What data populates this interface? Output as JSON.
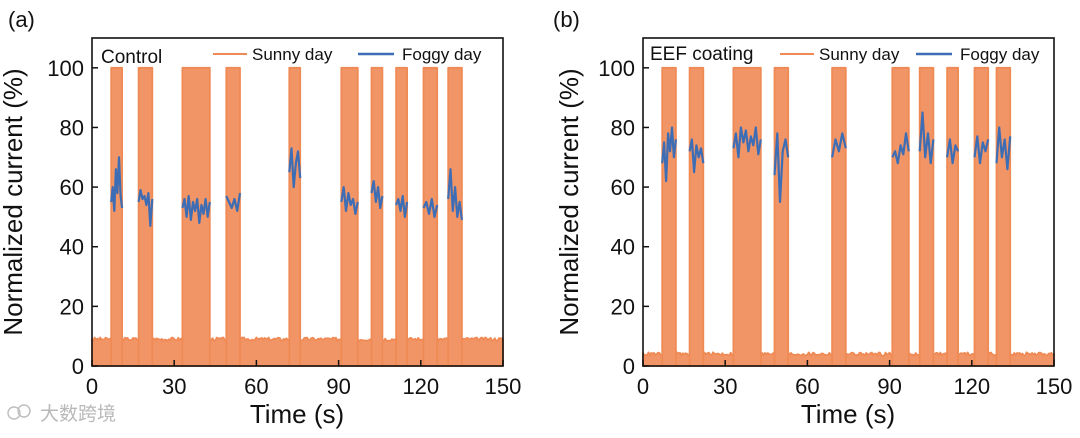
{
  "watermark": {
    "text": "大数跨境"
  },
  "chart_data": [
    {
      "panel": "(a)",
      "label": "Control",
      "type": "line",
      "xlabel": "Time (s)",
      "ylabel": "Normalized current (%)",
      "xlim": [
        0,
        150
      ],
      "ylim": [
        0,
        110
      ],
      "xticks": [
        0,
        30,
        60,
        90,
        120,
        150
      ],
      "yticks": [
        0,
        20,
        40,
        60,
        80,
        100
      ],
      "legend": {
        "placement": "top-right",
        "entries": [
          "Sunny day",
          "Foggy day"
        ]
      },
      "colors": {
        "sunny": "#f08a55",
        "foggy": "#3d6db5"
      },
      "sunny_baseline": 9,
      "sunny_segments": [
        [
          7,
          11
        ],
        [
          17,
          22
        ],
        [
          33,
          43
        ],
        [
          49,
          54
        ],
        [
          72,
          76
        ],
        [
          91,
          97
        ],
        [
          102,
          106
        ],
        [
          111,
          115
        ],
        [
          121,
          126
        ],
        [
          130,
          135
        ]
      ],
      "foggy_bursts": [
        {
          "start": 7,
          "end": 11,
          "values": [
            55,
            60,
            52,
            66,
            58,
            70,
            57,
            53
          ]
        },
        {
          "start": 17,
          "end": 22,
          "values": [
            55,
            59,
            56,
            57,
            54,
            58,
            47,
            56
          ]
        },
        {
          "start": 33,
          "end": 43,
          "values": [
            53,
            56,
            50,
            57,
            49,
            55,
            52,
            56,
            48,
            54,
            51,
            56,
            50,
            55
          ]
        },
        {
          "start": 49,
          "end": 54,
          "values": [
            57,
            55,
            53,
            56,
            52,
            58
          ]
        },
        {
          "start": 72,
          "end": 76,
          "values": [
            65,
            73,
            60,
            68,
            72,
            63
          ]
        },
        {
          "start": 91,
          "end": 97,
          "values": [
            55,
            60,
            52,
            58,
            54,
            56,
            51,
            55
          ]
        },
        {
          "start": 102,
          "end": 106,
          "values": [
            58,
            62,
            55,
            60,
            53,
            57
          ]
        },
        {
          "start": 111,
          "end": 115,
          "values": [
            54,
            56,
            52,
            57,
            50,
            55
          ]
        },
        {
          "start": 121,
          "end": 126,
          "values": [
            53,
            55,
            51,
            56,
            50,
            54
          ]
        },
        {
          "start": 130,
          "end": 135,
          "values": [
            56,
            66,
            52,
            60,
            50,
            55,
            49
          ]
        }
      ]
    },
    {
      "panel": "(b)",
      "label": "EEF coating",
      "type": "line",
      "xlabel": "Time (s)",
      "ylabel": "Normalized current (%)",
      "xlim": [
        0,
        150
      ],
      "ylim": [
        0,
        110
      ],
      "xticks": [
        0,
        30,
        60,
        90,
        120,
        150
      ],
      "yticks": [
        0,
        20,
        40,
        60,
        80,
        100
      ],
      "legend": {
        "placement": "top-right",
        "entries": [
          "Sunny day",
          "Foggy day"
        ]
      },
      "colors": {
        "sunny": "#f08a55",
        "foggy": "#3d6db5"
      },
      "sunny_baseline": 4,
      "sunny_segments": [
        [
          7,
          12
        ],
        [
          17,
          22
        ],
        [
          33,
          43
        ],
        [
          48,
          53
        ],
        [
          69,
          74
        ],
        [
          91,
          97
        ],
        [
          101,
          106
        ],
        [
          111,
          115
        ],
        [
          121,
          126
        ],
        [
          129,
          134
        ]
      ],
      "foggy_bursts": [
        {
          "start": 7,
          "end": 12,
          "values": [
            68,
            75,
            62,
            78,
            72,
            80,
            70,
            76
          ]
        },
        {
          "start": 17,
          "end": 22,
          "values": [
            72,
            76,
            65,
            74,
            70,
            73,
            68
          ]
        },
        {
          "start": 33,
          "end": 43,
          "values": [
            73,
            78,
            70,
            80,
            75,
            79,
            72,
            77,
            74,
            80,
            71,
            76
          ]
        },
        {
          "start": 48,
          "end": 53,
          "values": [
            64,
            78,
            55,
            72,
            76,
            70
          ]
        },
        {
          "start": 69,
          "end": 74,
          "values": [
            70,
            76,
            72,
            78,
            73
          ]
        },
        {
          "start": 91,
          "end": 97,
          "values": [
            70,
            72,
            68,
            74,
            71,
            78,
            72
          ]
        },
        {
          "start": 101,
          "end": 106,
          "values": [
            72,
            85,
            70,
            78,
            68,
            76
          ]
        },
        {
          "start": 111,
          "end": 115,
          "values": [
            70,
            76,
            68,
            74,
            72
          ]
        },
        {
          "start": 121,
          "end": 126,
          "values": [
            70,
            77,
            68,
            75,
            72,
            76
          ]
        },
        {
          "start": 129,
          "end": 134,
          "values": [
            68,
            80,
            70,
            76,
            66,
            77
          ]
        }
      ]
    }
  ]
}
